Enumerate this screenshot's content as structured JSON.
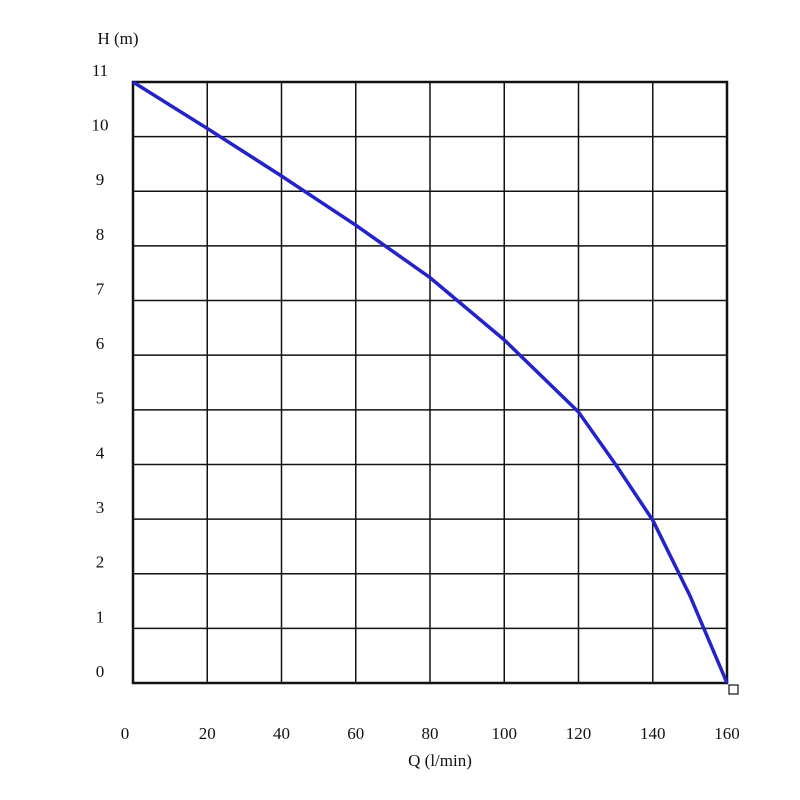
{
  "chart_data": {
    "type": "line",
    "x_label": "Q (l/min)",
    "y_label": "H (m)",
    "x": [
      0,
      20,
      40,
      60,
      80,
      100,
      120,
      130,
      140,
      150,
      160
    ],
    "values": [
      11,
      10.15,
      9.28,
      8.38,
      7.42,
      6.28,
      4.96,
      4.0,
      2.98,
      1.6,
      0
    ],
    "color": "#2323c8",
    "xlim": [
      0,
      160
    ],
    "xticks": [
      0,
      20,
      40,
      60,
      80,
      100,
      120,
      140,
      160
    ],
    "ylim": [
      0,
      11
    ],
    "yticks": [
      0,
      1,
      2,
      3,
      4,
      5,
      6,
      7,
      8,
      9,
      10,
      11
    ],
    "grid": true
  }
}
